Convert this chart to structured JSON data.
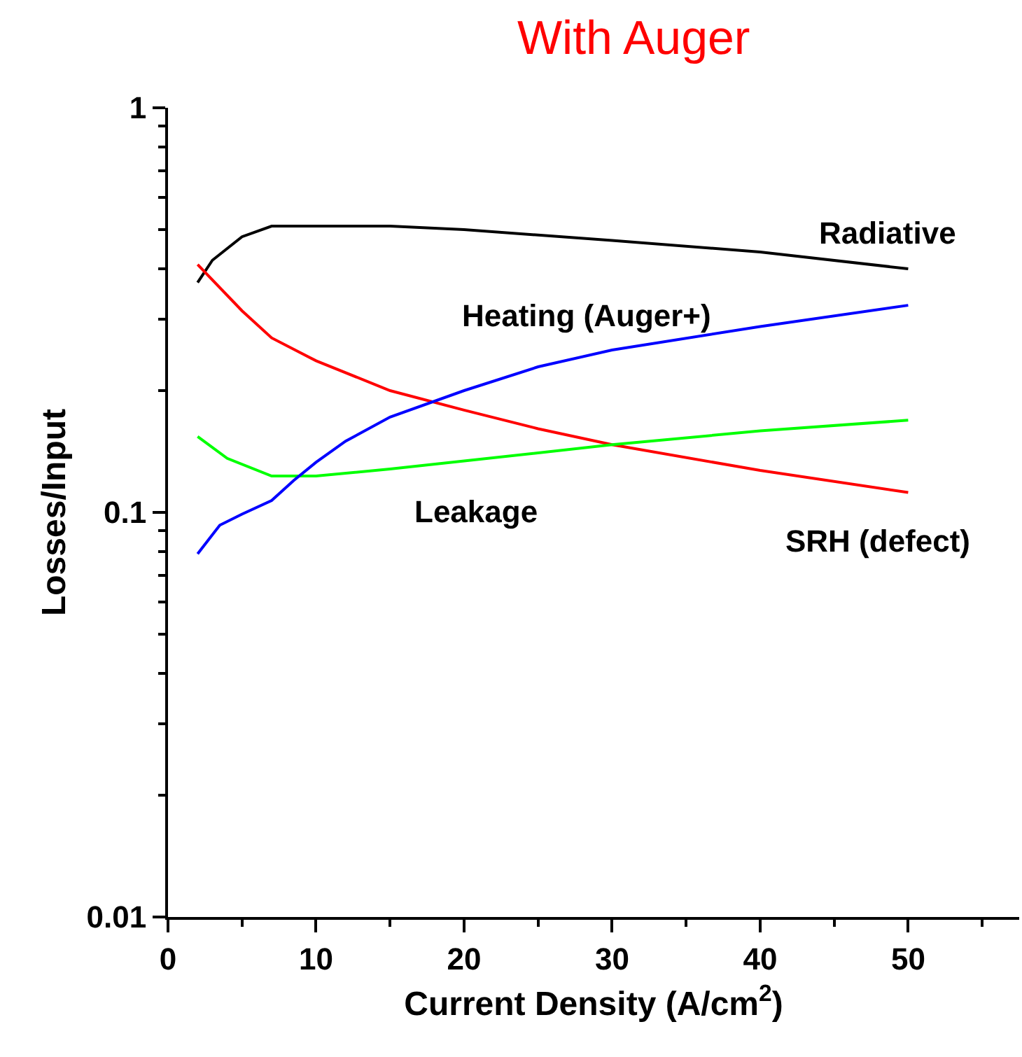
{
  "chart_data": {
    "type": "line",
    "title": "With Auger",
    "xlabel": "Current Density (A/cm$^{2}$)",
    "ylabel": "Losses/Input",
    "log": true,
    "grid": false,
    "legend": false,
    "marker": "none",
    "line_style": "solid",
    "xlim": [
      0,
      57.5
    ],
    "ylim": [
      0.01,
      1
    ],
    "xticks": [
      0,
      {
        "value": 5,
        "label": null
      },
      10,
      {
        "value": 15,
        "label": null
      },
      20,
      {
        "value": 25,
        "label": null
      },
      30,
      {
        "value": 35,
        "label": null
      },
      40,
      {
        "value": 45,
        "label": null
      },
      50,
      {
        "value": 55,
        "label": null
      }
    ],
    "yticks": [
      0.01,
      {
        "value": 0.02,
        "label": null
      },
      {
        "value": 0.03,
        "label": null
      },
      {
        "value": 0.04,
        "label": null
      },
      {
        "value": 0.05,
        "label": null
      },
      {
        "value": 0.06,
        "label": null
      },
      {
        "value": 0.07,
        "label": null
      },
      {
        "value": 0.08,
        "label": null
      },
      {
        "value": 0.09,
        "label": null
      },
      0.1,
      {
        "value": 0.2,
        "label": null
      },
      {
        "value": 0.3,
        "label": null
      },
      {
        "value": 0.4,
        "label": null
      },
      {
        "value": 0.5,
        "label": null
      },
      {
        "value": 0.6,
        "label": null
      },
      {
        "value": 0.7,
        "label": null
      },
      {
        "value": 0.8,
        "label": null
      },
      {
        "value": 0.9,
        "label": null
      },
      1
    ],
    "series": [
      {
        "name": "Radiative",
        "color": "#000000",
        "x": [
          2,
          3,
          5,
          7,
          10,
          15,
          20,
          30,
          40,
          50
        ],
        "values": [
          0.37,
          0.42,
          0.48,
          0.51,
          0.51,
          0.51,
          0.5,
          0.47,
          0.44,
          0.4
        ]
      },
      {
        "name": "SRH (defect)",
        "color": "#ff0000",
        "x": [
          2,
          5,
          7,
          10,
          15,
          20,
          25,
          30,
          40,
          50
        ],
        "values": [
          0.41,
          0.315,
          0.27,
          0.237,
          0.2,
          0.179,
          0.161,
          0.147,
          0.127,
          0.112
        ]
      },
      {
        "name": "Leakage",
        "color": "#00ff00",
        "x": [
          2,
          4,
          7,
          10,
          15,
          20,
          30,
          40,
          50
        ],
        "values": [
          0.154,
          0.136,
          0.123,
          0.123,
          0.128,
          0.134,
          0.147,
          0.159,
          0.169
        ]
      },
      {
        "name": "Heating (Auger+)",
        "color": "#0000ff",
        "x": [
          2,
          3.5,
          5,
          7,
          8.5,
          10,
          12,
          15,
          20,
          25,
          30,
          40,
          50
        ],
        "values": [
          0.079,
          0.093,
          0.099,
          0.107,
          0.12,
          0.133,
          0.15,
          0.172,
          0.2,
          0.229,
          0.252,
          0.288,
          0.325
        ]
      }
    ]
  }
}
